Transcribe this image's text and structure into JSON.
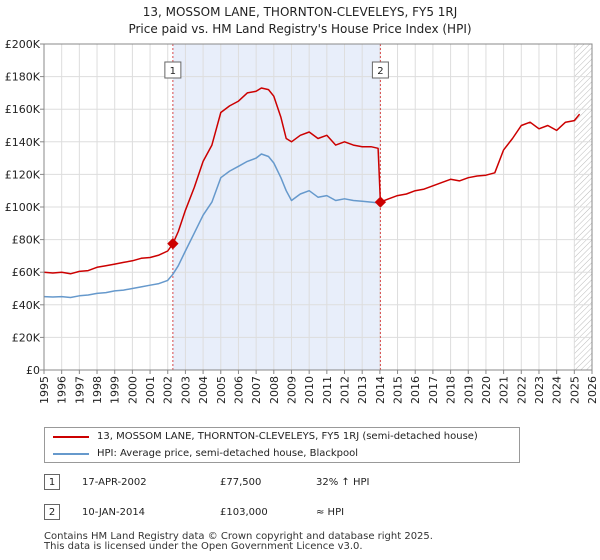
{
  "chart_data": {
    "type": "line",
    "title": "13, MOSSOM LANE, THORNTON-CLEVELEYS, FY5 1RJ",
    "subtitle": "Price paid vs. HM Land Registry's House Price Index (HPI)",
    "xlim": [
      1995,
      2026
    ],
    "ylim": [
      0,
      200000
    ],
    "yticks": [
      0,
      20000,
      40000,
      60000,
      80000,
      100000,
      120000,
      140000,
      160000,
      180000,
      200000
    ],
    "ytick_labels": [
      "£0",
      "£20K",
      "£40K",
      "£60K",
      "£80K",
      "£100K",
      "£120K",
      "£140K",
      "£160K",
      "£180K",
      "£200K"
    ],
    "xticks": [
      1995,
      1996,
      1997,
      1998,
      1999,
      2000,
      2001,
      2002,
      2003,
      2004,
      2005,
      2006,
      2007,
      2008,
      2009,
      2010,
      2011,
      2012,
      2013,
      2014,
      2015,
      2016,
      2017,
      2018,
      2019,
      2020,
      2021,
      2022,
      2023,
      2024,
      2025,
      2026
    ],
    "shade_range": [
      2002.29,
      2014.03
    ],
    "hatch_from": 2025.0,
    "grid": true,
    "series": [
      {
        "name": "13, MOSSOM LANE, THORNTON-CLEVELEYS, FY5 1RJ (semi-detached house)",
        "color": "#cc0000",
        "x": [
          1995,
          1995.5,
          1996,
          1996.5,
          1997,
          1997.5,
          1998,
          1998.5,
          1999,
          1999.5,
          2000,
          2000.5,
          2001,
          2001.5,
          2002,
          2002.29,
          2002.6,
          2003,
          2003.5,
          2004,
          2004.5,
          2005,
          2005.5,
          2006,
          2006.5,
          2007,
          2007.3,
          2007.7,
          2008,
          2008.4,
          2008.7,
          2009,
          2009.5,
          2010,
          2010.5,
          2011,
          2011.5,
          2012,
          2012.5,
          2013,
          2013.5,
          2013.9,
          2014.03,
          2014.5,
          2015,
          2015.5,
          2016,
          2016.5,
          2017,
          2017.5,
          2018,
          2018.5,
          2019,
          2019.5,
          2020,
          2020.5,
          2021,
          2021.5,
          2022,
          2022.5,
          2023,
          2023.5,
          2024,
          2024.5,
          2025,
          2025.3
        ],
        "y": [
          60000,
          59500,
          60000,
          59000,
          60500,
          61000,
          63000,
          64000,
          65000,
          66000,
          67000,
          68500,
          69000,
          70500,
          73000,
          77500,
          85000,
          98000,
          112000,
          128000,
          138000,
          158000,
          162000,
          165000,
          170000,
          171000,
          173000,
          172000,
          168000,
          155000,
          142000,
          140000,
          144000,
          146000,
          142000,
          144000,
          138000,
          140000,
          138000,
          137000,
          137000,
          136000,
          103000,
          105000,
          107000,
          108000,
          110000,
          111000,
          113000,
          115000,
          117000,
          116000,
          118000,
          119000,
          119500,
          121000,
          135000,
          142000,
          150000,
          152000,
          148000,
          150000,
          147000,
          152000,
          153000,
          157000
        ]
      },
      {
        "name": "HPI: Average price, semi-detached house, Blackpool",
        "color": "#6699cc",
        "x": [
          1995,
          1995.5,
          1996,
          1996.5,
          1997,
          1997.5,
          1998,
          1998.5,
          1999,
          1999.5,
          2000,
          2000.5,
          2001,
          2001.5,
          2002,
          2002.29,
          2002.6,
          2003,
          2003.5,
          2004,
          2004.5,
          2005,
          2005.5,
          2006,
          2006.5,
          2007,
          2007.3,
          2007.7,
          2008,
          2008.4,
          2008.7,
          2009,
          2009.5,
          2010,
          2010.5,
          2011,
          2011.5,
          2012,
          2012.5,
          2013,
          2013.5,
          2013.9,
          2014.03
        ],
        "y": [
          45000,
          44800,
          45000,
          44500,
          45500,
          46000,
          47000,
          47500,
          48500,
          49000,
          50000,
          51000,
          52000,
          53000,
          55000,
          58800,
          64000,
          73000,
          84000,
          95000,
          103000,
          118000,
          122000,
          125000,
          128000,
          130000,
          132500,
          131000,
          127000,
          118000,
          110000,
          104000,
          108000,
          110000,
          106000,
          107000,
          104000,
          105000,
          104000,
          103500,
          103000,
          102500,
          103000
        ]
      }
    ],
    "points": [
      {
        "label": "1",
        "x": 2002.29,
        "y": 77500,
        "color": "#cc0000"
      },
      {
        "label": "2",
        "x": 2014.03,
        "y": 103000,
        "color": "#cc0000"
      }
    ]
  },
  "legend": {
    "property_label": "13, MOSSOM LANE, THORNTON-CLEVELEYS, FY5 1RJ (semi-detached house)",
    "hpi_label": "HPI: Average price, semi-detached house, Blackpool",
    "property_color": "#cc0000",
    "hpi_color": "#6699cc"
  },
  "transactions": [
    {
      "num": "1",
      "date": "17-APR-2002",
      "price": "£77,500",
      "hpi": "32% ↑ HPI"
    },
    {
      "num": "2",
      "date": "10-JAN-2014",
      "price": "£103,000",
      "hpi": "≈ HPI"
    }
  ],
  "footer": {
    "line1": "Contains HM Land Registry data © Crown copyright and database right 2025.",
    "line2": "This data is licensed under the Open Government Licence v3.0."
  }
}
